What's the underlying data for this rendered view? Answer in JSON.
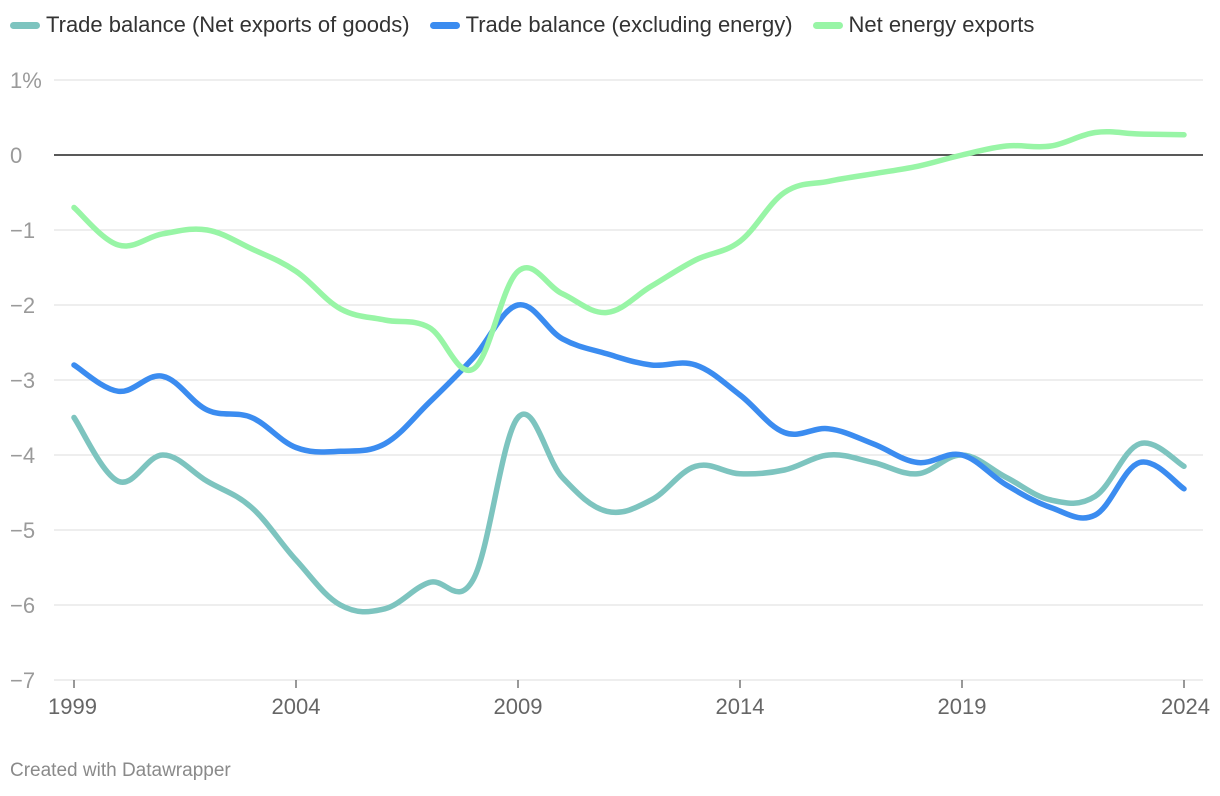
{
  "legend": [
    {
      "label": "Trade balance (Net exports of goods)",
      "color": "#7dc4bf"
    },
    {
      "label": "Trade balance (excluding energy)",
      "color": "#3b8cf0"
    },
    {
      "label": "Net energy exports",
      "color": "#98f5a6"
    }
  ],
  "footer": {
    "credit": "Created with Datawrapper"
  },
  "chart_data": {
    "type": "line",
    "title": "",
    "xlabel": "",
    "ylabel": "",
    "xlim": [
      1999,
      2024
    ],
    "ylim": [
      -7,
      1
    ],
    "y_ticks": [
      1,
      0,
      -1,
      -2,
      -3,
      -4,
      -5,
      -6,
      -7
    ],
    "y_tick_labels": [
      "1%",
      "0",
      "−1",
      "−2",
      "−3",
      "−4",
      "−5",
      "−6",
      "−7"
    ],
    "x_ticks": [
      1999,
      2004,
      2009,
      2014,
      2019,
      2024
    ],
    "x_tick_labels": [
      "1999",
      "2004",
      "2009",
      "2014",
      "2019",
      "2024"
    ],
    "zero_line": 0,
    "grid": true,
    "legend_position": "top-left",
    "series": [
      {
        "name": "Trade balance (Net exports of goods)",
        "color": "#7dc4bf",
        "x": [
          1999,
          2000,
          2001,
          2002,
          2003,
          2004,
          2005,
          2006,
          2007,
          2008,
          2009,
          2010,
          2011,
          2012,
          2013,
          2014,
          2015,
          2016,
          2017,
          2018,
          2019,
          2020,
          2021,
          2022,
          2023,
          2024
        ],
        "values": [
          -3.5,
          -4.35,
          -4.0,
          -4.35,
          -4.7,
          -5.4,
          -6.0,
          -6.05,
          -5.7,
          -5.65,
          -3.5,
          -4.3,
          -4.75,
          -4.6,
          -4.15,
          -4.25,
          -4.2,
          -4.0,
          -4.1,
          -4.25,
          -4.0,
          -4.3,
          -4.6,
          -4.55,
          -3.85,
          -4.15
        ]
      },
      {
        "name": "Trade balance (excluding energy)",
        "color": "#3b8cf0",
        "x": [
          1999,
          2000,
          2001,
          2002,
          2003,
          2004,
          2005,
          2006,
          2007,
          2008,
          2009,
          2010,
          2011,
          2012,
          2013,
          2014,
          2015,
          2016,
          2017,
          2018,
          2019,
          2020,
          2021,
          2022,
          2023,
          2024
        ],
        "values": [
          -2.8,
          -3.15,
          -2.95,
          -3.4,
          -3.5,
          -3.9,
          -3.95,
          -3.85,
          -3.3,
          -2.7,
          -2.0,
          -2.45,
          -2.65,
          -2.8,
          -2.8,
          -3.2,
          -3.7,
          -3.65,
          -3.85,
          -4.1,
          -4.0,
          -4.4,
          -4.7,
          -4.8,
          -4.1,
          -4.45
        ]
      },
      {
        "name": "Net energy exports",
        "color": "#98f5a6",
        "x": [
          1999,
          2000,
          2001,
          2002,
          2003,
          2004,
          2005,
          2006,
          2007,
          2008,
          2009,
          2010,
          2011,
          2012,
          2013,
          2014,
          2015,
          2016,
          2017,
          2018,
          2019,
          2020,
          2021,
          2022,
          2023,
          2024
        ],
        "values": [
          -0.7,
          -1.2,
          -1.05,
          -1.0,
          -1.25,
          -1.55,
          -2.05,
          -2.2,
          -2.3,
          -2.85,
          -1.55,
          -1.85,
          -2.1,
          -1.75,
          -1.4,
          -1.15,
          -0.5,
          -0.35,
          -0.25,
          -0.15,
          0.0,
          0.12,
          0.12,
          0.3,
          0.28,
          0.27
        ]
      }
    ]
  }
}
